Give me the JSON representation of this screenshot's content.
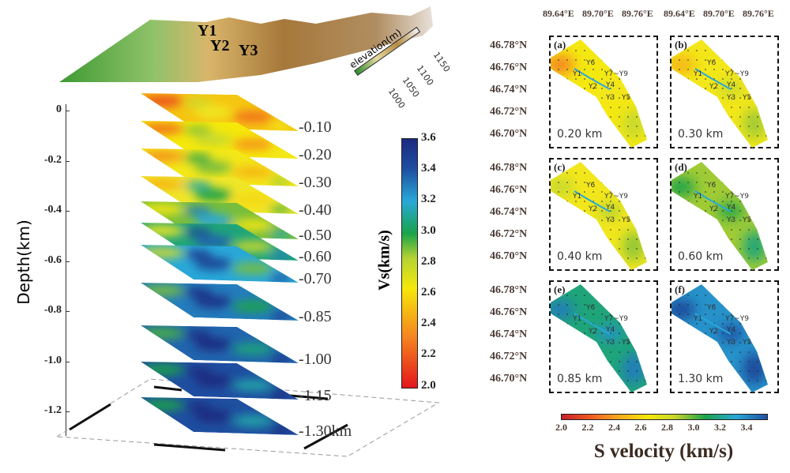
{
  "terrain": {
    "well_labels": [
      "Y1",
      "Y2",
      "Y3"
    ],
    "elevation_legend": {
      "title": "elevation(m)",
      "ticks": [
        "1000",
        "1050",
        "1100",
        "1150"
      ],
      "colors": [
        "#2e8b2e",
        "#e8d9a0",
        "#b58a40",
        "#f2f2f2"
      ]
    }
  },
  "chart_data": [
    {
      "type": "heatmap",
      "description_type": "3d-stacked-slices",
      "ylabel": "Depth(km)",
      "yticks": [
        "0",
        "-0.2",
        "-0.4",
        "-0.6",
        "-0.8",
        "-1.0",
        "-1.2"
      ],
      "ylim": [
        -1.3,
        0
      ],
      "slices": [
        {
          "label": "-0.10",
          "depth": -0.1,
          "dominant_vs": 2.5
        },
        {
          "label": "-0.20",
          "depth": -0.2,
          "dominant_vs": 2.6
        },
        {
          "label": "-0.30",
          "depth": -0.3,
          "dominant_vs": 2.7
        },
        {
          "label": "-0.40",
          "depth": -0.4,
          "dominant_vs": 2.8
        },
        {
          "label": "-0.50",
          "depth": -0.5,
          "dominant_vs": 2.95
        },
        {
          "label": "-0.60",
          "depth": -0.6,
          "dominant_vs": 3.1
        },
        {
          "label": "-0.70",
          "depth": -0.7,
          "dominant_vs": 3.2
        },
        {
          "label": "-0.85",
          "depth": -0.85,
          "dominant_vs": 3.3
        },
        {
          "label": "-1.00",
          "depth": -1.0,
          "dominant_vs": 3.35
        },
        {
          "label": "-1.15",
          "depth": -1.15,
          "dominant_vs": 3.4
        },
        {
          "label": "-1.30km",
          "depth": -1.3,
          "dominant_vs": 3.4
        }
      ],
      "colorbar": {
        "title": "Vs(km/s)",
        "ticks": [
          "3.6",
          "3.4",
          "3.2",
          "3.0",
          "2.8",
          "2.6",
          "2.4",
          "2.2",
          "2.0"
        ],
        "range": [
          2.0,
          3.6
        ]
      }
    },
    {
      "type": "heatmap",
      "description_type": "map-panels",
      "lon_ticks": [
        "89.64°E",
        "89.70°E",
        "89.76°E"
      ],
      "lat_ticks": [
        "46.78°N",
        "46.76°N",
        "46.74°N",
        "46.72°N",
        "46.70°N"
      ],
      "well_labels": [
        "Y6",
        "Y1",
        "Y7~Y9",
        "Y2",
        "Y4",
        "Y3",
        "Y5"
      ],
      "panels": [
        {
          "label": "(a)",
          "depth": "0.20 km",
          "dominant_vs": 2.65,
          "anomaly_vs": 2.3
        },
        {
          "label": "(b)",
          "depth": "0.30 km",
          "dominant_vs": 2.7,
          "anomaly_vs": 2.45
        },
        {
          "label": "(c)",
          "depth": "0.40 km",
          "dominant_vs": 2.72,
          "anomaly_vs": 2.85
        },
        {
          "label": "(d)",
          "depth": "0.60 km",
          "dominant_vs": 2.9,
          "anomaly_vs": 3.05
        },
        {
          "label": "(e)",
          "depth": "0.85 km",
          "dominant_vs": 3.1,
          "anomaly_vs": 3.3
        },
        {
          "label": "(f)",
          "depth": "1.30 km",
          "dominant_vs": 3.25,
          "anomaly_vs": 3.45
        }
      ],
      "colorbar": {
        "title": "S velocity (km/s)",
        "ticks": [
          "2.0",
          "2.2",
          "2.4",
          "2.6",
          "2.8",
          "3.0",
          "3.2",
          "3.4"
        ],
        "range": [
          2.0,
          3.55
        ]
      }
    }
  ]
}
